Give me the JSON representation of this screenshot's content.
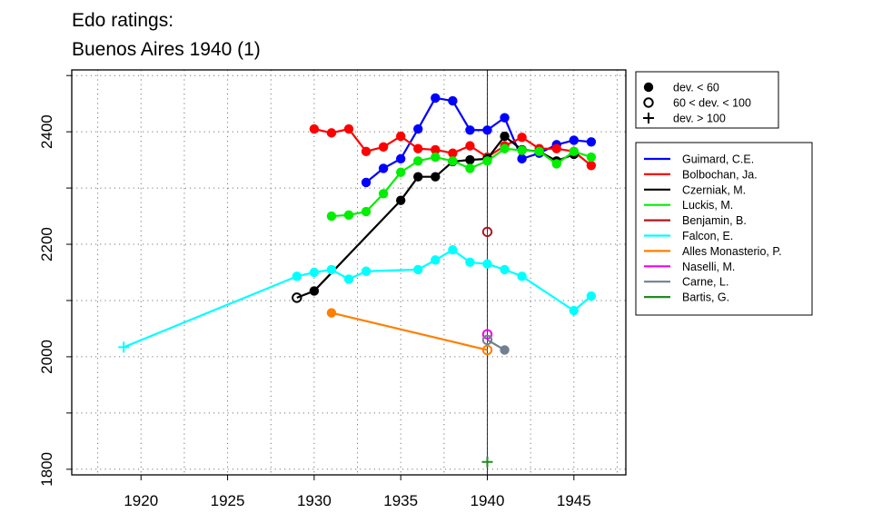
{
  "chart_data": {
    "type": "line",
    "title_lines": [
      "Edo ratings:",
      "Buenos Aires 1940 (1)"
    ],
    "xlabel": "",
    "ylabel": "",
    "xlim": [
      1916,
      1948
    ],
    "ylim": [
      1790,
      2510
    ],
    "x_ticks": [
      1920,
      1925,
      1930,
      1935,
      1940,
      1945
    ],
    "y_ticks": [
      1800,
      2000,
      2200,
      2400
    ],
    "grid": true,
    "reference_line_x": 1940,
    "marker_legend": [
      {
        "symbol": "filled-circle",
        "label": "dev. < 60"
      },
      {
        "symbol": "open-circle",
        "label": "60 < dev. < 100"
      },
      {
        "symbol": "plus",
        "label": "dev. > 100"
      }
    ],
    "series": [
      {
        "name": "Guimard, C.E.",
        "color": "#0000ff",
        "points": [
          [
            1933,
            2310,
            "f"
          ],
          [
            1934,
            2335,
            "f"
          ],
          [
            1935,
            2352,
            "f"
          ],
          [
            1936,
            2405,
            "f"
          ],
          [
            1937,
            2460,
            "f"
          ],
          [
            1938,
            2455,
            "f"
          ],
          [
            1939,
            2403,
            "f"
          ],
          [
            1940,
            2403,
            "f"
          ],
          [
            1941,
            2425,
            "f"
          ],
          [
            1942,
            2352,
            "f"
          ],
          [
            1943,
            2362,
            "f"
          ],
          [
            1944,
            2377,
            "f"
          ],
          [
            1945,
            2385,
            "f"
          ],
          [
            1946,
            2382,
            "f"
          ]
        ]
      },
      {
        "name": "Bolbochan, Ja.",
        "color": "#ff0000",
        "points": [
          [
            1930,
            2405,
            "f"
          ],
          [
            1931,
            2398,
            "f"
          ],
          [
            1932,
            2405,
            "f"
          ],
          [
            1933,
            2365,
            "f"
          ],
          [
            1934,
            2373,
            "f"
          ],
          [
            1935,
            2392,
            "f"
          ],
          [
            1936,
            2370,
            "f"
          ],
          [
            1937,
            2368,
            "f"
          ],
          [
            1938,
            2362,
            "f"
          ],
          [
            1939,
            2375,
            "f"
          ],
          [
            1940,
            2355,
            "f"
          ],
          [
            1941,
            2375,
            "f"
          ],
          [
            1942,
            2390,
            "f"
          ],
          [
            1943,
            2370,
            "f"
          ],
          [
            1944,
            2370,
            "f"
          ],
          [
            1945,
            2365,
            "f"
          ],
          [
            1946,
            2340,
            "f"
          ]
        ]
      },
      {
        "name": "Czerniak, M.",
        "color": "#000000",
        "points": [
          [
            1929,
            2105,
            "o"
          ],
          [
            1930,
            2117,
            "f"
          ],
          [
            1935,
            2278,
            "f"
          ],
          [
            1936,
            2320,
            "f"
          ],
          [
            1937,
            2320,
            "f"
          ],
          [
            1938,
            2347,
            "f"
          ],
          [
            1939,
            2350,
            "f"
          ],
          [
            1940,
            2352,
            "f"
          ],
          [
            1941,
            2392,
            "f"
          ],
          [
            1942,
            2368,
            "f"
          ],
          [
            1943,
            2365,
            "f"
          ],
          [
            1944,
            2348,
            "f"
          ],
          [
            1945,
            2360,
            "f"
          ]
        ]
      },
      {
        "name": "Luckis, M.",
        "color": "#00ee00",
        "points": [
          [
            1931,
            2250,
            "f"
          ],
          [
            1932,
            2252,
            "f"
          ],
          [
            1933,
            2258,
            "f"
          ],
          [
            1934,
            2290,
            "f"
          ],
          [
            1935,
            2328,
            "f"
          ],
          [
            1936,
            2348,
            "f"
          ],
          [
            1937,
            2355,
            "f"
          ],
          [
            1938,
            2348,
            "f"
          ],
          [
            1939,
            2335,
            "f"
          ],
          [
            1940,
            2348,
            "f"
          ],
          [
            1941,
            2370,
            "f"
          ],
          [
            1942,
            2367,
            "f"
          ],
          [
            1943,
            2365,
            "f"
          ],
          [
            1944,
            2343,
            "f"
          ],
          [
            1945,
            2365,
            "f"
          ],
          [
            1946,
            2355,
            "f"
          ]
        ]
      },
      {
        "name": "Benjamin, B.",
        "color": "#b0171f",
        "points": [
          [
            1940,
            2222,
            "o"
          ]
        ]
      },
      {
        "name": "Falcon, E.",
        "color": "#00ffff",
        "points": [
          [
            1919,
            2017,
            "p"
          ],
          [
            1929,
            2143,
            "f"
          ],
          [
            1930,
            2150,
            "f"
          ],
          [
            1931,
            2155,
            "f"
          ],
          [
            1932,
            2138,
            "f"
          ],
          [
            1933,
            2152,
            "f"
          ],
          [
            1936,
            2155,
            "f"
          ],
          [
            1937,
            2172,
            "f"
          ],
          [
            1938,
            2190,
            "f"
          ],
          [
            1939,
            2168,
            "f"
          ],
          [
            1940,
            2165,
            "f"
          ],
          [
            1941,
            2155,
            "f"
          ],
          [
            1942,
            2143,
            "f"
          ],
          [
            1945,
            2082,
            "f"
          ],
          [
            1946,
            2108,
            "f"
          ]
        ]
      },
      {
        "name": "Alles Monasterio, P.",
        "color": "#ff7f00",
        "points": [
          [
            1931,
            2078,
            "f"
          ],
          [
            1940,
            2012,
            "o"
          ]
        ]
      },
      {
        "name": "Naselli, M.",
        "color": "#ee00ee",
        "points": [
          [
            1940,
            2040,
            "o"
          ]
        ]
      },
      {
        "name": "Carne, L.",
        "color": "#708090",
        "points": [
          [
            1940,
            2030,
            "o"
          ],
          [
            1941,
            2012,
            "f"
          ]
        ]
      },
      {
        "name": "Bartis, G.",
        "color": "#228b22",
        "points": [
          [
            1940,
            1813,
            "p"
          ]
        ]
      }
    ]
  }
}
